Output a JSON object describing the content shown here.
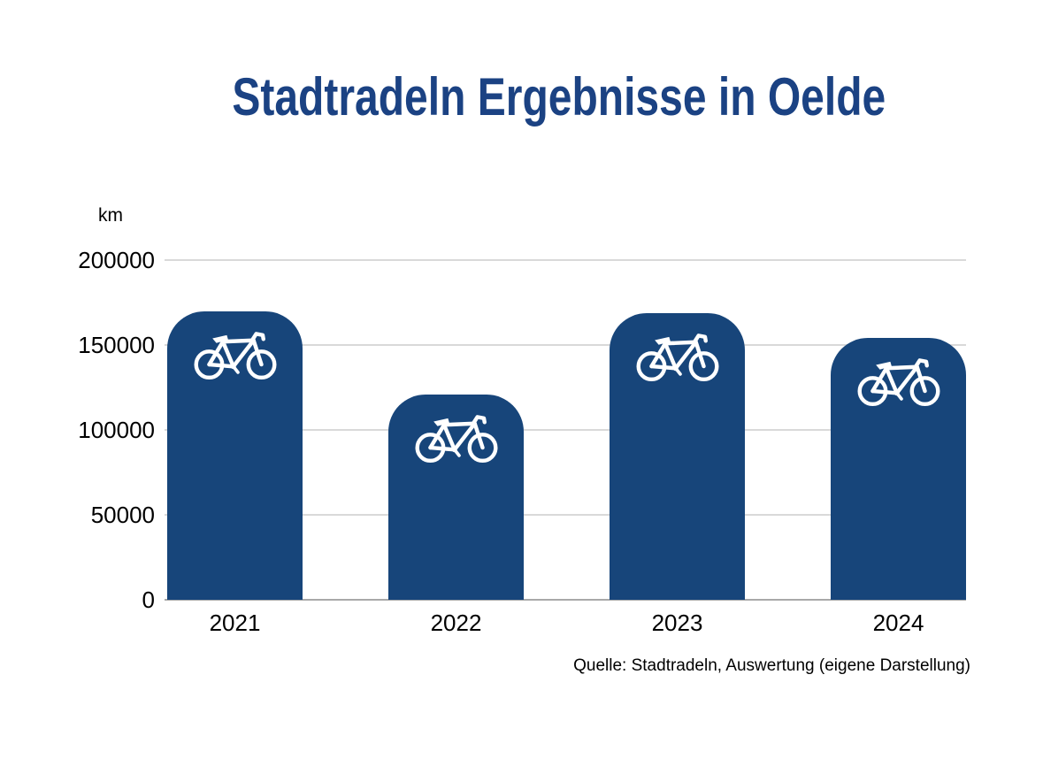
{
  "page": {
    "title": "Stadtradeln Ergebnisse in Oelde",
    "unit_label": "km",
    "source_note": "Quelle: Stadtradeln, Auswertung (eigene Darstellung)"
  },
  "chart_data": {
    "type": "bar",
    "title": "Stadtradeln Ergebnisse in Oelde",
    "categories": [
      "2021",
      "2022",
      "2023",
      "2024"
    ],
    "values": [
      170000,
      121000,
      169000,
      154000
    ],
    "xlabel": "",
    "ylabel": "km",
    "ylim": [
      0,
      200000
    ],
    "yticks": [
      0,
      50000,
      100000,
      150000,
      200000
    ],
    "ytick_labels": [
      "0",
      "50000",
      "100000",
      "150000",
      "200000"
    ],
    "grid": true,
    "legend": "none",
    "bar_icon": "bicycle",
    "source": "Quelle: Stadtradeln, Auswertung (eigene Darstellung)"
  },
  "colors": {
    "background": "#FFFFFF",
    "title": "#1B4283",
    "bar": "#17457A",
    "bar_icon": "#FFFFFF",
    "gridline": "#D9D9D9",
    "baseline": "#A9A9A9",
    "axis_text": "#000000"
  }
}
